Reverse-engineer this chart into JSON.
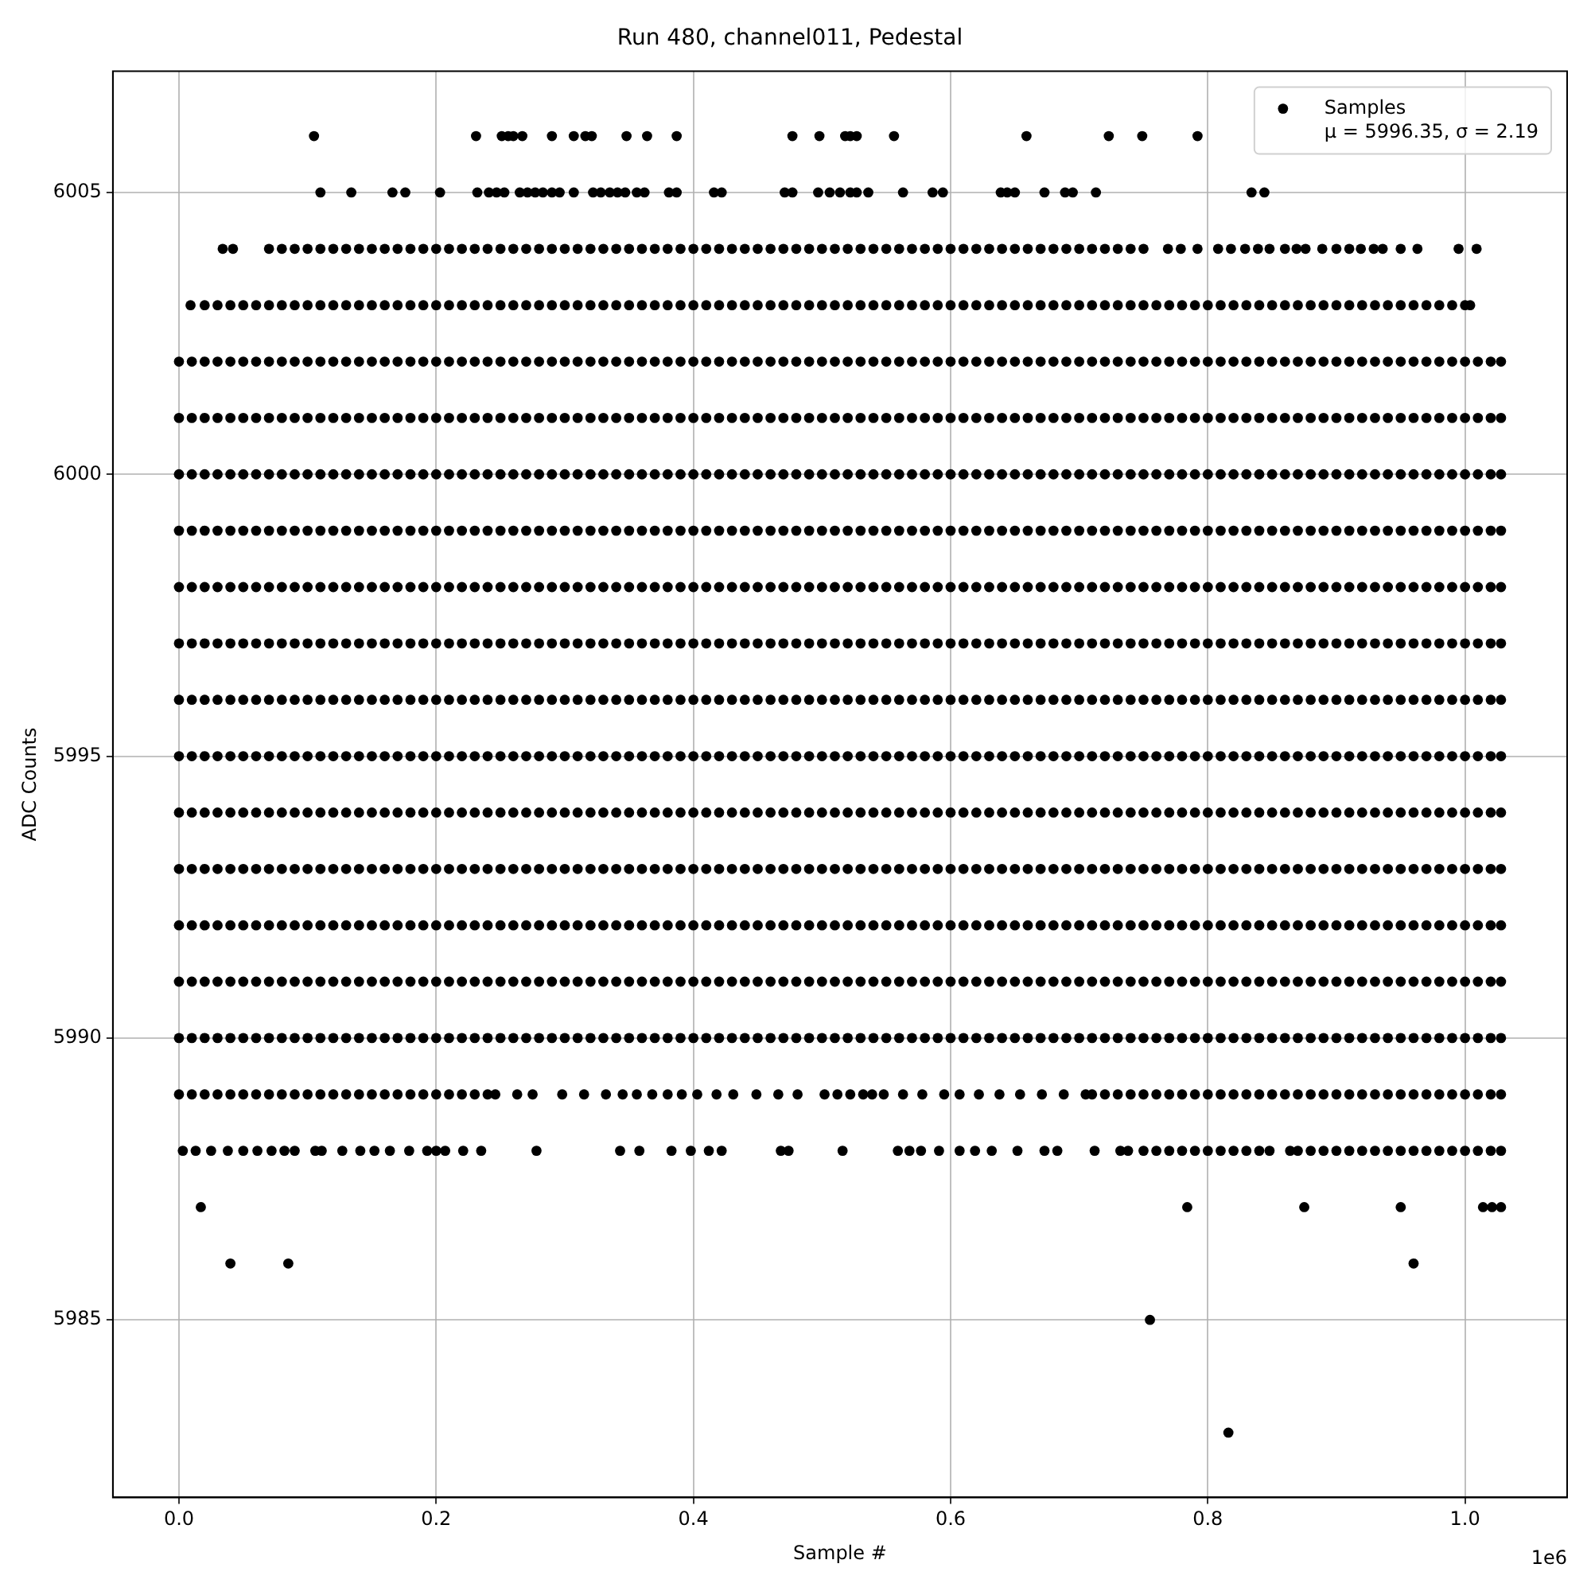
{
  "chart_data": {
    "type": "scatter",
    "title": "Run 480, channel011, Pedestal",
    "xlabel": "Sample #",
    "ylabel": "ADC Counts",
    "annotations": [
      "1e6"
    ],
    "xlim": [
      -0.0514,
      1.0794
    ],
    "ylim": [
      5981.85,
      6007.15
    ],
    "xticks": [
      {
        "value": 0,
        "label": "0.0"
      },
      0.2,
      0.4,
      0.6,
      0.8,
      {
        "value": 1,
        "label": "1.0"
      }
    ],
    "yticks": [
      5985,
      5990,
      5995,
      6000,
      6005
    ],
    "grid": true,
    "legend": "top right",
    "marker": "circle",
    "x": [
      0,
      0.01,
      0.02,
      0.03,
      0.04,
      0.05,
      0.06,
      0.07,
      0.08,
      0.09,
      0.1,
      0.11,
      0.12,
      0.13,
      0.14,
      0.15,
      0.16,
      0.17,
      0.18,
      0.19,
      0.2,
      0.21,
      0.22,
      0.23,
      0.24,
      0.25,
      0.26,
      0.27,
      0.28,
      0.29,
      0.3,
      0.31,
      0.32,
      0.33,
      0.34,
      0.35,
      0.36,
      0.37,
      0.38,
      0.39,
      0.4,
      0.41,
      0.42,
      0.43,
      0.44,
      0.45,
      0.46,
      0.47,
      0.48,
      0.49,
      0.5,
      0.51,
      0.52,
      0.53,
      0.54,
      0.55,
      0.56,
      0.57,
      0.58,
      0.59,
      0.6,
      0.61,
      0.62,
      0.63,
      0.64,
      0.65,
      0.66,
      0.67,
      0.68,
      0.69,
      0.7,
      0.71,
      0.72,
      0.73,
      0.74,
      0.75,
      0.76,
      0.77,
      0.78,
      0.79,
      0.8,
      0.81,
      0.82,
      0.83,
      0.84,
      0.85,
      0.86,
      0.87,
      0.88,
      0.89,
      0.9,
      0.91,
      0.92,
      0.93,
      0.94,
      0.95,
      0.96,
      0.97,
      0.98,
      0.99,
      1.0,
      1.01,
      1.02,
      1.028
    ],
    "series": [
      {
        "name": "Samples\nμ = 5996.35, σ = 2.19",
        "color": "#000000",
        "x": [
          0.105,
          0.231,
          0.251,
          0.256,
          0.26,
          0.267,
          0.29,
          0.307,
          0.316,
          0.321,
          0.348,
          0.364,
          0.387,
          0.477,
          0.498,
          0.518,
          0.522,
          0.527,
          0.556,
          0.659,
          0.723,
          0.749,
          0.792
        ],
        "values": [
          6006,
          6006,
          6006,
          6006,
          6006,
          6006,
          6006,
          6006,
          6006,
          6006,
          6006,
          6006,
          6006,
          6006,
          6006,
          6006,
          6006,
          6006,
          6006,
          6006,
          6006,
          6006,
          6006
        ]
      },
      {
        "color": "#000000",
        "x": [
          0.11,
          0.134,
          0.166,
          0.176,
          0.203,
          0.232,
          0.241,
          0.247,
          0.253,
          0.265,
          0.271,
          0.277,
          0.283,
          0.29,
          0.296,
          0.307,
          0.322,
          0.328,
          0.335,
          0.341,
          0.347,
          0.356,
          0.362,
          0.381,
          0.387,
          0.416,
          0.422,
          0.471,
          0.477,
          0.497,
          0.506,
          0.514,
          0.522,
          0.527,
          0.536,
          0.563,
          0.586,
          0.594,
          0.639,
          0.644,
          0.65,
          0.673,
          0.689,
          0.695,
          0.713,
          0.834,
          0.844
        ],
        "values": [
          6005,
          6005,
          6005,
          6005,
          6005,
          6005,
          6005,
          6005,
          6005,
          6005,
          6005,
          6005,
          6005,
          6005,
          6005,
          6005,
          6005,
          6005,
          6005,
          6005,
          6005,
          6005,
          6005,
          6005,
          6005,
          6005,
          6005,
          6005,
          6005,
          6005,
          6005,
          6005,
          6005,
          6005,
          6005,
          6005,
          6005,
          6005,
          6005,
          6005,
          6005,
          6005,
          6005,
          6005,
          6005,
          6005,
          6005
        ]
      },
      {
        "color": "#000000",
        "x": [
          0.034,
          0.042,
          0.07,
          0.08,
          0.09,
          0.1,
          0.11,
          0.12,
          0.13,
          0.14,
          0.15,
          0.16,
          0.17,
          0.18,
          0.19,
          0.2,
          0.21,
          0.22,
          0.23,
          0.24,
          0.25,
          0.26,
          0.27,
          0.28,
          0.29,
          0.3,
          0.31,
          0.32,
          0.33,
          0.34,
          0.35,
          0.36,
          0.37,
          0.38,
          0.39,
          0.4,
          0.41,
          0.42,
          0.43,
          0.44,
          0.45,
          0.46,
          0.47,
          0.48,
          0.49,
          0.5,
          0.51,
          0.52,
          0.53,
          0.54,
          0.55,
          0.56,
          0.57,
          0.58,
          0.59,
          0.6,
          0.61,
          0.62,
          0.63,
          0.64,
          0.65,
          0.66,
          0.67,
          0.68,
          0.69,
          0.7,
          0.71,
          0.72,
          0.73,
          0.74,
          0.75,
          0.769,
          0.779,
          0.792,
          0.808,
          0.818,
          0.829,
          0.839,
          0.848,
          0.86,
          0.869,
          0.876,
          0.889,
          0.9,
          0.91,
          0.919,
          0.929,
          0.936,
          0.95,
          0.963,
          0.995,
          1.009
        ],
        "values": [
          6004,
          6004,
          6004,
          6004,
          6004,
          6004,
          6004,
          6004,
          6004,
          6004,
          6004,
          6004,
          6004,
          6004,
          6004,
          6004,
          6004,
          6004,
          6004,
          6004,
          6004,
          6004,
          6004,
          6004,
          6004,
          6004,
          6004,
          6004,
          6004,
          6004,
          6004,
          6004,
          6004,
          6004,
          6004,
          6004,
          6004,
          6004,
          6004,
          6004,
          6004,
          6004,
          6004,
          6004,
          6004,
          6004,
          6004,
          6004,
          6004,
          6004,
          6004,
          6004,
          6004,
          6004,
          6004,
          6004,
          6004,
          6004,
          6004,
          6004,
          6004,
          6004,
          6004,
          6004,
          6004,
          6004,
          6004,
          6004,
          6004,
          6004,
          6004,
          6004,
          6004,
          6004,
          6004,
          6004,
          6004,
          6004,
          6004,
          6004,
          6004,
          6004,
          6004,
          6004,
          6004,
          6004,
          6004,
          6004,
          6004,
          6004,
          6004,
          6004
        ]
      },
      {
        "color": "#000000",
        "x": [
          0.009,
          0.02,
          0.03,
          0.04,
          0.05,
          0.06,
          0.07,
          0.08,
          0.09,
          0.1,
          0.11,
          0.12,
          0.13,
          0.14,
          0.15,
          0.16,
          0.17,
          0.18,
          0.19,
          0.2,
          0.21,
          0.22,
          0.23,
          0.24,
          0.25,
          0.26,
          0.27,
          0.28,
          0.29,
          0.3,
          0.31,
          0.32,
          0.33,
          0.34,
          0.35,
          0.36,
          0.37,
          0.38,
          0.39,
          0.4,
          0.41,
          0.42,
          0.43,
          0.44,
          0.45,
          0.46,
          0.47,
          0.48,
          0.49,
          0.5,
          0.51,
          0.52,
          0.53,
          0.54,
          0.55,
          0.56,
          0.57,
          0.58,
          0.59,
          0.6,
          0.61,
          0.62,
          0.63,
          0.64,
          0.65,
          0.66,
          0.67,
          0.68,
          0.69,
          0.7,
          0.71,
          0.72,
          0.73,
          0.74,
          0.75,
          0.76,
          0.77,
          0.78,
          0.79,
          0.8,
          0.81,
          0.82,
          0.83,
          0.84,
          0.85,
          0.86,
          0.87,
          0.88,
          0.89,
          0.9,
          0.91,
          0.92,
          0.93,
          0.94,
          0.95,
          0.96,
          0.97,
          0.98,
          0.99,
          1.0,
          1.004
        ],
        "values": [
          6003,
          6003,
          6003,
          6003,
          6003,
          6003,
          6003,
          6003,
          6003,
          6003,
          6003,
          6003,
          6003,
          6003,
          6003,
          6003,
          6003,
          6003,
          6003,
          6003,
          6003,
          6003,
          6003,
          6003,
          6003,
          6003,
          6003,
          6003,
          6003,
          6003,
          6003,
          6003,
          6003,
          6003,
          6003,
          6003,
          6003,
          6003,
          6003,
          6003,
          6003,
          6003,
          6003,
          6003,
          6003,
          6003,
          6003,
          6003,
          6003,
          6003,
          6003,
          6003,
          6003,
          6003,
          6003,
          6003,
          6003,
          6003,
          6003,
          6003,
          6003,
          6003,
          6003,
          6003,
          6003,
          6003,
          6003,
          6003,
          6003,
          6003,
          6003,
          6003,
          6003,
          6003,
          6003,
          6003,
          6003,
          6003,
          6003,
          6003,
          6003,
          6003,
          6003,
          6003,
          6003,
          6003,
          6003,
          6003,
          6003,
          6003,
          6003,
          6003,
          6003,
          6003,
          6003,
          6003,
          6003,
          6003,
          6003,
          6003,
          6003
        ]
      },
      {
        "color": "#000000",
        "values": [
          6002,
          6002,
          6002,
          6002,
          6002,
          6002,
          6002,
          6002,
          6002,
          6002,
          6002,
          6002,
          6002,
          6002,
          6002,
          6002,
          6002,
          6002,
          6002,
          6002,
          6002,
          6002,
          6002,
          6002,
          6002,
          6002,
          6002,
          6002,
          6002,
          6002,
          6002,
          6002,
          6002,
          6002,
          6002,
          6002,
          6002,
          6002,
          6002,
          6002,
          6002,
          6002,
          6002,
          6002,
          6002,
          6002,
          6002,
          6002,
          6002,
          6002,
          6002,
          6002,
          6002,
          6002,
          6002,
          6002,
          6002,
          6002,
          6002,
          6002,
          6002,
          6002,
          6002,
          6002,
          6002,
          6002,
          6002,
          6002,
          6002,
          6002,
          6002,
          6002,
          6002,
          6002,
          6002,
          6002,
          6002,
          6002,
          6002,
          6002,
          6002,
          6002,
          6002,
          6002,
          6002,
          6002,
          6002,
          6002,
          6002,
          6002,
          6002,
          6002,
          6002,
          6002,
          6002,
          6002,
          6002,
          6002,
          6002,
          6002,
          6002,
          6002,
          6002,
          6002
        ]
      },
      {
        "color": "#000000",
        "values": [
          6001,
          6001,
          6001,
          6001,
          6001,
          6001,
          6001,
          6001,
          6001,
          6001,
          6001,
          6001,
          6001,
          6001,
          6001,
          6001,
          6001,
          6001,
          6001,
          6001,
          6001,
          6001,
          6001,
          6001,
          6001,
          6001,
          6001,
          6001,
          6001,
          6001,
          6001,
          6001,
          6001,
          6001,
          6001,
          6001,
          6001,
          6001,
          6001,
          6001,
          6001,
          6001,
          6001,
          6001,
          6001,
          6001,
          6001,
          6001,
          6001,
          6001,
          6001,
          6001,
          6001,
          6001,
          6001,
          6001,
          6001,
          6001,
          6001,
          6001,
          6001,
          6001,
          6001,
          6001,
          6001,
          6001,
          6001,
          6001,
          6001,
          6001,
          6001,
          6001,
          6001,
          6001,
          6001,
          6001,
          6001,
          6001,
          6001,
          6001,
          6001,
          6001,
          6001,
          6001,
          6001,
          6001,
          6001,
          6001,
          6001,
          6001,
          6001,
          6001,
          6001,
          6001,
          6001,
          6001,
          6001,
          6001,
          6001,
          6001,
          6001,
          6001,
          6001,
          6001
        ]
      },
      {
        "color": "#000000",
        "values": [
          6000,
          6000,
          6000,
          6000,
          6000,
          6000,
          6000,
          6000,
          6000,
          6000,
          6000,
          6000,
          6000,
          6000,
          6000,
          6000,
          6000,
          6000,
          6000,
          6000,
          6000,
          6000,
          6000,
          6000,
          6000,
          6000,
          6000,
          6000,
          6000,
          6000,
          6000,
          6000,
          6000,
          6000,
          6000,
          6000,
          6000,
          6000,
          6000,
          6000,
          6000,
          6000,
          6000,
          6000,
          6000,
          6000,
          6000,
          6000,
          6000,
          6000,
          6000,
          6000,
          6000,
          6000,
          6000,
          6000,
          6000,
          6000,
          6000,
          6000,
          6000,
          6000,
          6000,
          6000,
          6000,
          6000,
          6000,
          6000,
          6000,
          6000,
          6000,
          6000,
          6000,
          6000,
          6000,
          6000,
          6000,
          6000,
          6000,
          6000,
          6000,
          6000,
          6000,
          6000,
          6000,
          6000,
          6000,
          6000,
          6000,
          6000,
          6000,
          6000,
          6000,
          6000,
          6000,
          6000,
          6000,
          6000,
          6000,
          6000,
          6000,
          6000,
          6000,
          6000
        ]
      },
      {
        "color": "#000000",
        "values": [
          5999,
          5999,
          5999,
          5999,
          5999,
          5999,
          5999,
          5999,
          5999,
          5999,
          5999,
          5999,
          5999,
          5999,
          5999,
          5999,
          5999,
          5999,
          5999,
          5999,
          5999,
          5999,
          5999,
          5999,
          5999,
          5999,
          5999,
          5999,
          5999,
          5999,
          5999,
          5999,
          5999,
          5999,
          5999,
          5999,
          5999,
          5999,
          5999,
          5999,
          5999,
          5999,
          5999,
          5999,
          5999,
          5999,
          5999,
          5999,
          5999,
          5999,
          5999,
          5999,
          5999,
          5999,
          5999,
          5999,
          5999,
          5999,
          5999,
          5999,
          5999,
          5999,
          5999,
          5999,
          5999,
          5999,
          5999,
          5999,
          5999,
          5999,
          5999,
          5999,
          5999,
          5999,
          5999,
          5999,
          5999,
          5999,
          5999,
          5999,
          5999,
          5999,
          5999,
          5999,
          5999,
          5999,
          5999,
          5999,
          5999,
          5999,
          5999,
          5999,
          5999,
          5999,
          5999,
          5999,
          5999,
          5999,
          5999,
          5999,
          5999,
          5999,
          5999,
          5999
        ]
      },
      {
        "color": "#000000",
        "values": [
          5998,
          5998,
          5998,
          5998,
          5998,
          5998,
          5998,
          5998,
          5998,
          5998,
          5998,
          5998,
          5998,
          5998,
          5998,
          5998,
          5998,
          5998,
          5998,
          5998,
          5998,
          5998,
          5998,
          5998,
          5998,
          5998,
          5998,
          5998,
          5998,
          5998,
          5998,
          5998,
          5998,
          5998,
          5998,
          5998,
          5998,
          5998,
          5998,
          5998,
          5998,
          5998,
          5998,
          5998,
          5998,
          5998,
          5998,
          5998,
          5998,
          5998,
          5998,
          5998,
          5998,
          5998,
          5998,
          5998,
          5998,
          5998,
          5998,
          5998,
          5998,
          5998,
          5998,
          5998,
          5998,
          5998,
          5998,
          5998,
          5998,
          5998,
          5998,
          5998,
          5998,
          5998,
          5998,
          5998,
          5998,
          5998,
          5998,
          5998,
          5998,
          5998,
          5998,
          5998,
          5998,
          5998,
          5998,
          5998,
          5998,
          5998,
          5998,
          5998,
          5998,
          5998,
          5998,
          5998,
          5998,
          5998,
          5998,
          5998,
          5998,
          5998,
          5998,
          5998
        ]
      },
      {
        "color": "#000000",
        "values": [
          5997,
          5997,
          5997,
          5997,
          5997,
          5997,
          5997,
          5997,
          5997,
          5997,
          5997,
          5997,
          5997,
          5997,
          5997,
          5997,
          5997,
          5997,
          5997,
          5997,
          5997,
          5997,
          5997,
          5997,
          5997,
          5997,
          5997,
          5997,
          5997,
          5997,
          5997,
          5997,
          5997,
          5997,
          5997,
          5997,
          5997,
          5997,
          5997,
          5997,
          5997,
          5997,
          5997,
          5997,
          5997,
          5997,
          5997,
          5997,
          5997,
          5997,
          5997,
          5997,
          5997,
          5997,
          5997,
          5997,
          5997,
          5997,
          5997,
          5997,
          5997,
          5997,
          5997,
          5997,
          5997,
          5997,
          5997,
          5997,
          5997,
          5997,
          5997,
          5997,
          5997,
          5997,
          5997,
          5997,
          5997,
          5997,
          5997,
          5997,
          5997,
          5997,
          5997,
          5997,
          5997,
          5997,
          5997,
          5997,
          5997,
          5997,
          5997,
          5997,
          5997,
          5997,
          5997,
          5997,
          5997,
          5997,
          5997,
          5997,
          5997,
          5997,
          5997,
          5997
        ]
      },
      {
        "color": "#000000",
        "values": [
          5996,
          5996,
          5996,
          5996,
          5996,
          5996,
          5996,
          5996,
          5996,
          5996,
          5996,
          5996,
          5996,
          5996,
          5996,
          5996,
          5996,
          5996,
          5996,
          5996,
          5996,
          5996,
          5996,
          5996,
          5996,
          5996,
          5996,
          5996,
          5996,
          5996,
          5996,
          5996,
          5996,
          5996,
          5996,
          5996,
          5996,
          5996,
          5996,
          5996,
          5996,
          5996,
          5996,
          5996,
          5996,
          5996,
          5996,
          5996,
          5996,
          5996,
          5996,
          5996,
          5996,
          5996,
          5996,
          5996,
          5996,
          5996,
          5996,
          5996,
          5996,
          5996,
          5996,
          5996,
          5996,
          5996,
          5996,
          5996,
          5996,
          5996,
          5996,
          5996,
          5996,
          5996,
          5996,
          5996,
          5996,
          5996,
          5996,
          5996,
          5996,
          5996,
          5996,
          5996,
          5996,
          5996,
          5996,
          5996,
          5996,
          5996,
          5996,
          5996,
          5996,
          5996,
          5996,
          5996,
          5996,
          5996,
          5996,
          5996,
          5996,
          5996,
          5996,
          5996
        ]
      },
      {
        "color": "#000000",
        "values": [
          5995,
          5995,
          5995,
          5995,
          5995,
          5995,
          5995,
          5995,
          5995,
          5995,
          5995,
          5995,
          5995,
          5995,
          5995,
          5995,
          5995,
          5995,
          5995,
          5995,
          5995,
          5995,
          5995,
          5995,
          5995,
          5995,
          5995,
          5995,
          5995,
          5995,
          5995,
          5995,
          5995,
          5995,
          5995,
          5995,
          5995,
          5995,
          5995,
          5995,
          5995,
          5995,
          5995,
          5995,
          5995,
          5995,
          5995,
          5995,
          5995,
          5995,
          5995,
          5995,
          5995,
          5995,
          5995,
          5995,
          5995,
          5995,
          5995,
          5995,
          5995,
          5995,
          5995,
          5995,
          5995,
          5995,
          5995,
          5995,
          5995,
          5995,
          5995,
          5995,
          5995,
          5995,
          5995,
          5995,
          5995,
          5995,
          5995,
          5995,
          5995,
          5995,
          5995,
          5995,
          5995,
          5995,
          5995,
          5995,
          5995,
          5995,
          5995,
          5995,
          5995,
          5995,
          5995,
          5995,
          5995,
          5995,
          5995,
          5995,
          5995,
          5995,
          5995,
          5995
        ]
      },
      {
        "color": "#000000",
        "values": [
          5994,
          5994,
          5994,
          5994,
          5994,
          5994,
          5994,
          5994,
          5994,
          5994,
          5994,
          5994,
          5994,
          5994,
          5994,
          5994,
          5994,
          5994,
          5994,
          5994,
          5994,
          5994,
          5994,
          5994,
          5994,
          5994,
          5994,
          5994,
          5994,
          5994,
          5994,
          5994,
          5994,
          5994,
          5994,
          5994,
          5994,
          5994,
          5994,
          5994,
          5994,
          5994,
          5994,
          5994,
          5994,
          5994,
          5994,
          5994,
          5994,
          5994,
          5994,
          5994,
          5994,
          5994,
          5994,
          5994,
          5994,
          5994,
          5994,
          5994,
          5994,
          5994,
          5994,
          5994,
          5994,
          5994,
          5994,
          5994,
          5994,
          5994,
          5994,
          5994,
          5994,
          5994,
          5994,
          5994,
          5994,
          5994,
          5994,
          5994,
          5994,
          5994,
          5994,
          5994,
          5994,
          5994,
          5994,
          5994,
          5994,
          5994,
          5994,
          5994,
          5994,
          5994,
          5994,
          5994,
          5994,
          5994,
          5994,
          5994,
          5994,
          5994,
          5994,
          5994
        ]
      },
      {
        "color": "#000000",
        "values": [
          5993,
          5993,
          5993,
          5993,
          5993,
          5993,
          5993,
          5993,
          5993,
          5993,
          5993,
          5993,
          5993,
          5993,
          5993,
          5993,
          5993,
          5993,
          5993,
          5993,
          5993,
          5993,
          5993,
          5993,
          5993,
          5993,
          5993,
          5993,
          5993,
          5993,
          5993,
          5993,
          5993,
          5993,
          5993,
          5993,
          5993,
          5993,
          5993,
          5993,
          5993,
          5993,
          5993,
          5993,
          5993,
          5993,
          5993,
          5993,
          5993,
          5993,
          5993,
          5993,
          5993,
          5993,
          5993,
          5993,
          5993,
          5993,
          5993,
          5993,
          5993,
          5993,
          5993,
          5993,
          5993,
          5993,
          5993,
          5993,
          5993,
          5993,
          5993,
          5993,
          5993,
          5993,
          5993,
          5993,
          5993,
          5993,
          5993,
          5993,
          5993,
          5993,
          5993,
          5993,
          5993,
          5993,
          5993,
          5993,
          5993,
          5993,
          5993,
          5993,
          5993,
          5993,
          5993,
          5993,
          5993,
          5993,
          5993,
          5993,
          5993,
          5993,
          5993,
          5993
        ]
      },
      {
        "color": "#000000",
        "values": [
          5992,
          5992,
          5992,
          5992,
          5992,
          5992,
          5992,
          5992,
          5992,
          5992,
          5992,
          5992,
          5992,
          5992,
          5992,
          5992,
          5992,
          5992,
          5992,
          5992,
          5992,
          5992,
          5992,
          5992,
          5992,
          5992,
          5992,
          5992,
          5992,
          5992,
          5992,
          5992,
          5992,
          5992,
          5992,
          5992,
          5992,
          5992,
          5992,
          5992,
          5992,
          5992,
          5992,
          5992,
          5992,
          5992,
          5992,
          5992,
          5992,
          5992,
          5992,
          5992,
          5992,
          5992,
          5992,
          5992,
          5992,
          5992,
          5992,
          5992,
          5992,
          5992,
          5992,
          5992,
          5992,
          5992,
          5992,
          5992,
          5992,
          5992,
          5992,
          5992,
          5992,
          5992,
          5992,
          5992,
          5992,
          5992,
          5992,
          5992,
          5992,
          5992,
          5992,
          5992,
          5992,
          5992,
          5992,
          5992,
          5992,
          5992,
          5992,
          5992,
          5992,
          5992,
          5992,
          5992,
          5992,
          5992,
          5992,
          5992,
          5992,
          5992,
          5992,
          5992
        ]
      },
      {
        "color": "#000000",
        "values": [
          5991,
          5991,
          5991,
          5991,
          5991,
          5991,
          5991,
          5991,
          5991,
          5991,
          5991,
          5991,
          5991,
          5991,
          5991,
          5991,
          5991,
          5991,
          5991,
          5991,
          5991,
          5991,
          5991,
          5991,
          5991,
          5991,
          5991,
          5991,
          5991,
          5991,
          5991,
          5991,
          5991,
          5991,
          5991,
          5991,
          5991,
          5991,
          5991,
          5991,
          5991,
          5991,
          5991,
          5991,
          5991,
          5991,
          5991,
          5991,
          5991,
          5991,
          5991,
          5991,
          5991,
          5991,
          5991,
          5991,
          5991,
          5991,
          5991,
          5991,
          5991,
          5991,
          5991,
          5991,
          5991,
          5991,
          5991,
          5991,
          5991,
          5991,
          5991,
          5991,
          5991,
          5991,
          5991,
          5991,
          5991,
          5991,
          5991,
          5991,
          5991,
          5991,
          5991,
          5991,
          5991,
          5991,
          5991,
          5991,
          5991,
          5991,
          5991,
          5991,
          5991,
          5991,
          5991,
          5991,
          5991,
          5991,
          5991,
          5991,
          5991,
          5991,
          5991,
          5991
        ]
      },
      {
        "color": "#000000",
        "values": [
          5990,
          5990,
          5990,
          5990,
          5990,
          5990,
          5990,
          5990,
          5990,
          5990,
          5990,
          5990,
          5990,
          5990,
          5990,
          5990,
          5990,
          5990,
          5990,
          5990,
          5990,
          5990,
          5990,
          5990,
          5990,
          5990,
          5990,
          5990,
          5990,
          5990,
          5990,
          5990,
          5990,
          5990,
          5990,
          5990,
          5990,
          5990,
          5990,
          5990,
          5990,
          5990,
          5990,
          5990,
          5990,
          5990,
          5990,
          5990,
          5990,
          5990,
          5990,
          5990,
          5990,
          5990,
          5990,
          5990,
          5990,
          5990,
          5990,
          5990,
          5990,
          5990,
          5990,
          5990,
          5990,
          5990,
          5990,
          5990,
          5990,
          5990,
          5990,
          5990,
          5990,
          5990,
          5990,
          5990,
          5990,
          5990,
          5990,
          5990,
          5990,
          5990,
          5990,
          5990,
          5990,
          5990,
          5990,
          5990,
          5990,
          5990,
          5990,
          5990,
          5990,
          5990,
          5990,
          5990,
          5990,
          5990,
          5990,
          5990,
          5990,
          5990,
          5990,
          5990
        ]
      },
      {
        "color": "#000000",
        "x": [
          0,
          0.01,
          0.02,
          0.03,
          0.04,
          0.05,
          0.06,
          0.07,
          0.08,
          0.09,
          0.1,
          0.11,
          0.12,
          0.13,
          0.14,
          0.15,
          0.16,
          0.17,
          0.18,
          0.19,
          0.2,
          0.21,
          0.22,
          0.23,
          0.24,
          0.246,
          0.263,
          0.275,
          0.298,
          0.315,
          0.332,
          0.345,
          0.356,
          0.368,
          0.38,
          0.391,
          0.403,
          0.418,
          0.431,
          0.449,
          0.466,
          0.481,
          0.502,
          0.512,
          0.522,
          0.532,
          0.539,
          0.548,
          0.563,
          0.578,
          0.595,
          0.607,
          0.622,
          0.638,
          0.654,
          0.671,
          0.688,
          0.705,
          0.71,
          0.72,
          0.73,
          0.74,
          0.75,
          0.76,
          0.77,
          0.78,
          0.79,
          0.8,
          0.81,
          0.82,
          0.83,
          0.84,
          0.85,
          0.86,
          0.87,
          0.88,
          0.89,
          0.9,
          0.91,
          0.92,
          0.93,
          0.94,
          0.95,
          0.96,
          0.97,
          0.98,
          0.99,
          1.0,
          1.01,
          1.02,
          1.028
        ],
        "values": [
          5989,
          5989,
          5989,
          5989,
          5989,
          5989,
          5989,
          5989,
          5989,
          5989,
          5989,
          5989,
          5989,
          5989,
          5989,
          5989,
          5989,
          5989,
          5989,
          5989,
          5989,
          5989,
          5989,
          5989,
          5989,
          5989,
          5989,
          5989,
          5989,
          5989,
          5989,
          5989,
          5989,
          5989,
          5989,
          5989,
          5989,
          5989,
          5989,
          5989,
          5989,
          5989,
          5989,
          5989,
          5989,
          5989,
          5989,
          5989,
          5989,
          5989,
          5989,
          5989,
          5989,
          5989,
          5989,
          5989,
          5989,
          5989,
          5989,
          5989,
          5989,
          5989,
          5989,
          5989,
          5989,
          5989,
          5989,
          5989,
          5989,
          5989,
          5989,
          5989,
          5989,
          5989,
          5989,
          5989,
          5989,
          5989,
          5989,
          5989,
          5989,
          5989,
          5989,
          5989,
          5989,
          5989,
          5989,
          5989,
          5989,
          5989,
          5989
        ]
      },
      {
        "color": "#000000",
        "x": [
          0.003,
          0.013,
          0.025,
          0.038,
          0.05,
          0.061,
          0.072,
          0.082,
          0.09,
          0.106,
          0.111,
          0.127,
          0.141,
          0.152,
          0.164,
          0.179,
          0.193,
          0.2,
          0.207,
          0.221,
          0.235,
          0.278,
          0.343,
          0.358,
          0.383,
          0.398,
          0.412,
          0.422,
          0.468,
          0.474,
          0.516,
          0.559,
          0.568,
          0.577,
          0.591,
          0.607,
          0.619,
          0.632,
          0.652,
          0.673,
          0.683,
          0.712,
          0.732,
          0.738,
          0.75,
          0.76,
          0.77,
          0.78,
          0.79,
          0.8,
          0.81,
          0.82,
          0.83,
          0.84,
          0.848,
          0.864,
          0.87,
          0.88,
          0.89,
          0.9,
          0.91,
          0.92,
          0.93,
          0.94,
          0.95,
          0.96,
          0.97,
          0.98,
          0.99,
          1.0,
          1.01,
          1.02,
          1.028
        ],
        "values": [
          5988,
          5988,
          5988,
          5988,
          5988,
          5988,
          5988,
          5988,
          5988,
          5988,
          5988,
          5988,
          5988,
          5988,
          5988,
          5988,
          5988,
          5988,
          5988,
          5988,
          5988,
          5988,
          5988,
          5988,
          5988,
          5988,
          5988,
          5988,
          5988,
          5988,
          5988,
          5988,
          5988,
          5988,
          5988,
          5988,
          5988,
          5988,
          5988,
          5988,
          5988,
          5988,
          5988,
          5988,
          5988,
          5988,
          5988,
          5988,
          5988,
          5988,
          5988,
          5988,
          5988,
          5988,
          5988,
          5988,
          5988,
          5988,
          5988,
          5988,
          5988,
          5988,
          5988,
          5988,
          5988,
          5988,
          5988,
          5988,
          5988,
          5988,
          5988,
          5988,
          5988
        ]
      },
      {
        "color": "#000000",
        "x": [
          0.017,
          0.784,
          0.875,
          0.95,
          1.014,
          1.021,
          1.028
        ],
        "values": [
          5987,
          5987,
          5987,
          5987,
          5987,
          5987,
          5987
        ]
      },
      {
        "color": "#000000",
        "x": [
          0.04,
          0.085,
          0.96
        ],
        "values": [
          5986,
          5986,
          5986
        ]
      },
      {
        "color": "#000000",
        "x": [
          0.755
        ],
        "values": [
          5985
        ]
      },
      {
        "color": "#000000",
        "x": [
          0.816
        ],
        "values": [
          5983
        ]
      }
    ]
  }
}
